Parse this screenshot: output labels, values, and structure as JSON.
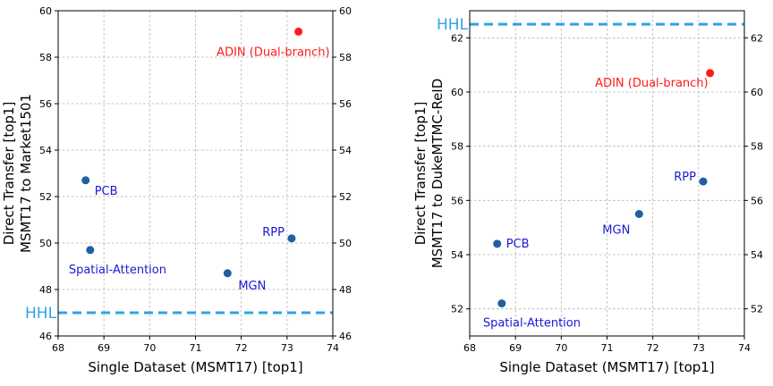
{
  "colors": {
    "point": "#1f5fa3",
    "highlight": "#ff1a1a",
    "label": "#1a1ad6",
    "hhl": "#2ea3e6"
  },
  "chart_data": [
    {
      "type": "scatter",
      "xlabel": "Single Dataset (MSMT17) [top1]",
      "ylabel_lines": [
        "Direct Transfer [top1]",
        "MSMT17 to Market1501"
      ],
      "xlim": [
        68,
        74
      ],
      "ylim": [
        46,
        60
      ],
      "xticks": [
        68,
        69,
        70,
        71,
        72,
        73,
        74
      ],
      "yticks": [
        46,
        48,
        50,
        52,
        54,
        56,
        58,
        60
      ],
      "right_axis_ticks": true,
      "grid": true,
      "hline": {
        "label": "HHL",
        "y": 47.0
      },
      "points": [
        {
          "label": "PCB",
          "x": 68.6,
          "y": 52.7,
          "highlight": false
        },
        {
          "label": "Spatial-Attention",
          "x": 68.7,
          "y": 49.7,
          "highlight": false
        },
        {
          "label": "MGN",
          "x": 71.7,
          "y": 48.7,
          "highlight": false
        },
        {
          "label": "RPP",
          "x": 73.1,
          "y": 50.2,
          "highlight": false
        },
        {
          "label": "ADIN (Dual-branch)",
          "x": 73.25,
          "y": 59.1,
          "highlight": true
        }
      ]
    },
    {
      "type": "scatter",
      "xlabel": "Single Dataset (MSMT17) [top1]",
      "ylabel_lines": [
        "Direct Transfer [top1]",
        "MSMT17 to DukeMTMC-ReID"
      ],
      "xlim": [
        68,
        74
      ],
      "ylim": [
        51,
        63
      ],
      "xticks": [
        68,
        69,
        70,
        71,
        72,
        73,
        74
      ],
      "yticks": [
        52,
        54,
        56,
        58,
        60,
        62
      ],
      "right_axis_ticks": true,
      "grid": true,
      "hline": {
        "label": "HHL",
        "y": 62.5
      },
      "points": [
        {
          "label": "PCB",
          "x": 68.6,
          "y": 54.4,
          "highlight": false
        },
        {
          "label": "Spatial-Attention",
          "x": 68.7,
          "y": 52.2,
          "highlight": false
        },
        {
          "label": "MGN",
          "x": 71.7,
          "y": 55.5,
          "highlight": false
        },
        {
          "label": "RPP",
          "x": 73.1,
          "y": 56.7,
          "highlight": false
        },
        {
          "label": "ADIN (Dual-branch)",
          "x": 73.25,
          "y": 60.7,
          "highlight": true
        }
      ]
    }
  ]
}
